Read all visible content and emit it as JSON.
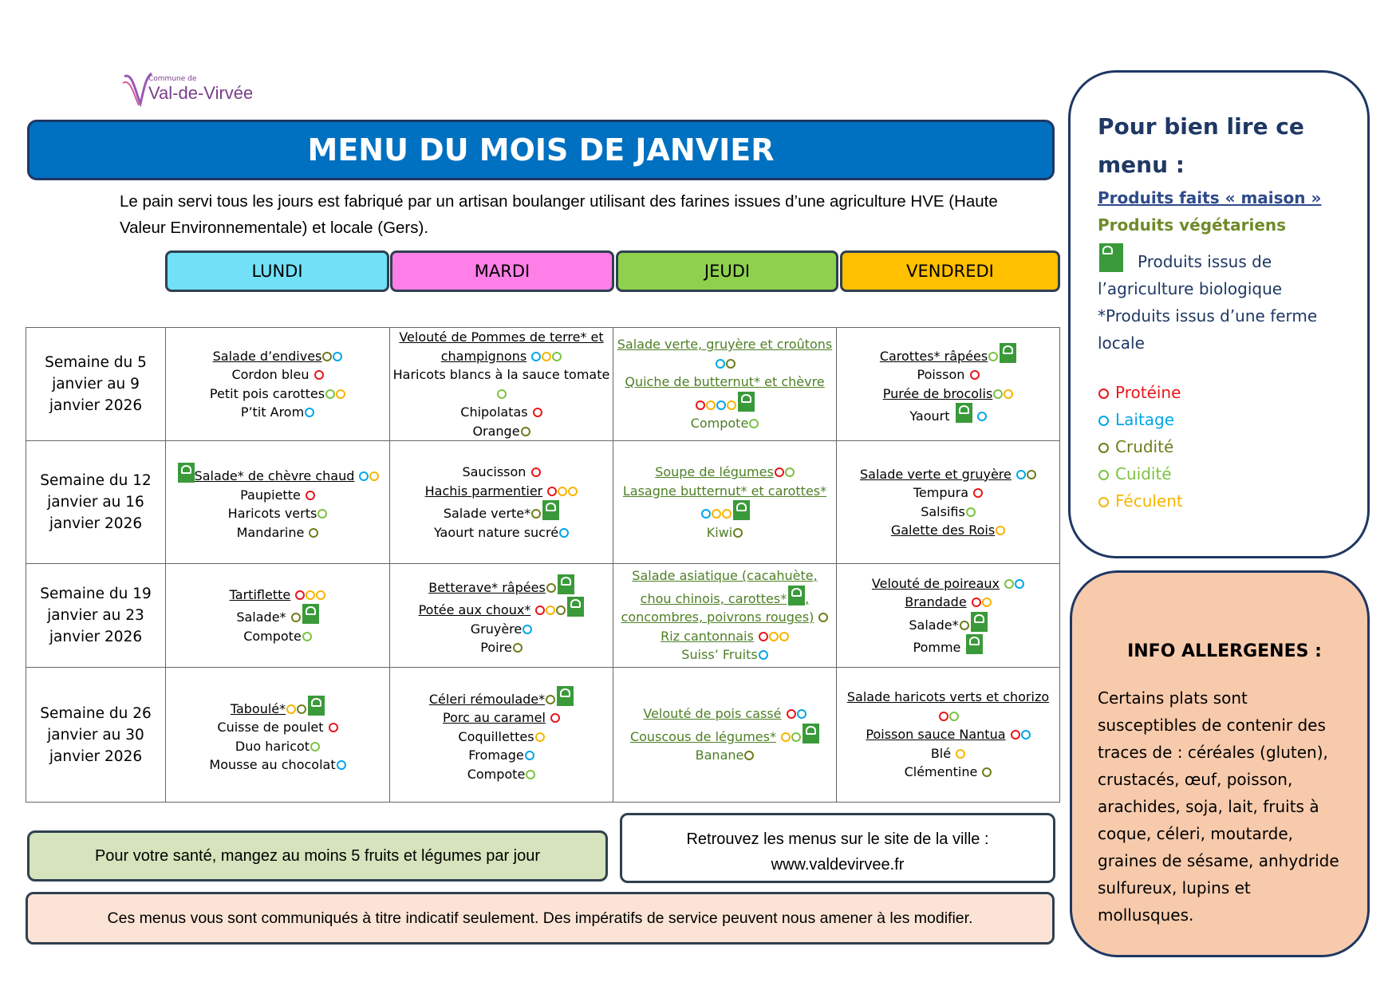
{
  "header": {
    "commune": "Commune de",
    "town": "Val-de-Virvée",
    "title": "MENU DU MOIS DE JANVIER",
    "intro": "Le pain servi tous les jours est fabriqué par un artisan boulanger utilisant des farines issues d’une agriculture HVE (Haute Valeur Environnementale) et locale (Gers)."
  },
  "days": [
    "LUNDI",
    "MARDI",
    "JEUDI",
    "VENDREDI"
  ],
  "weeks": [
    {
      "label": "Semaine du 5 janvier au 9 janvier 2026",
      "days": [
        [
          "Salade d’endives",
          "Cordon bleu",
          "Petit pois carottes",
          "P’tit Arom"
        ],
        [
          "Velouté de Pommes de terre* et champignons",
          "Haricots blancs à la sauce tomate",
          "Chipolatas",
          "Orange"
        ],
        [
          "Salade verte, gruyère et croûtons",
          "Quiche de butternut* et chèvre",
          "Compote"
        ],
        [
          "Carottes* râpées",
          "Poisson",
          "Purée de brocolis",
          "Yaourt"
        ]
      ]
    },
    {
      "label": "Semaine du 12 janvier au 16 janvier 2026",
      "days": [
        [
          "Salade* de chèvre chaud",
          "Paupiette",
          "Haricots verts",
          "Mandarine"
        ],
        [
          "Saucisson",
          "Hachis parmentier",
          "Salade verte*",
          "Yaourt nature sucré"
        ],
        [
          "Soupe de légumes",
          "Lasagne butternut* et carottes*",
          "Kiwi"
        ],
        [
          "Salade verte et gruyère",
          "Tempura",
          "Salsifis",
          "Galette des Rois"
        ]
      ]
    },
    {
      "label": "Semaine du 19 janvier au 23 janvier 2026",
      "days": [
        [
          "Tartiflette",
          "Salade*",
          "Compote"
        ],
        [
          "Betterave* râpées",
          "Potée aux choux*",
          "Gruyère",
          "Poire"
        ],
        [
          "Salade asiatique (cacahuète, chou chinois, carottes*",
          ", concombres, poivrons rouges)",
          "Riz cantonnais",
          "Suiss’ Fruits"
        ],
        [
          "Velouté de poireaux",
          "Brandade",
          "Salade*",
          "Pomme"
        ]
      ]
    },
    {
      "label": "Semaine du 26 janvier au 30 janvier 2026",
      "days": [
        [
          "Taboulé*",
          "Cuisse de poulet",
          "Duo haricot",
          "Mousse au chocolat"
        ],
        [
          "Céleri rémoulade*",
          "Porc au caramel",
          "Coquillettes",
          "Fromage",
          "Compote"
        ],
        [
          "Velouté de pois cassé",
          "Couscous de légumes*",
          "Banane"
        ],
        [
          "Salade haricots verts et chorizo",
          "Poisson sauce Nantua",
          "Blé",
          "Clémentine"
        ]
      ]
    }
  ],
  "footer": {
    "health": "Pour votre santé, mangez au moins 5 fruits et légumes par jour",
    "site_text": "Retrouvez les menus sur le site de la ville :",
    "site_url": "www.valdevirvee.fr",
    "disclaimer": "Ces menus vous sont communiqués à titre indicatif seulement. Des impératifs de service peuvent nous amener à les modifier."
  },
  "legend": {
    "title": "Pour bien lire ce menu :",
    "homemade": "Produits faits « maison »",
    "vegetarian": "Produits végétariens",
    "organic": "Produits issus de l’agriculture biologique",
    "local": "*Produits issus d’une ferme locale",
    "categories": [
      "Protéine",
      "Laitage",
      "Crudité",
      "Cuidité",
      "Féculent"
    ]
  },
  "allergens": {
    "title": "INFO ALLERGENES :",
    "text": "Certains plats sont susceptibles de contenir des traces de : céréales (gluten), crustacés, œuf, poisson, arachides, soja, lait, fruits à coque, céleri, moutarde, graines de sésame, anhydride sulfureux, lupins et mollusques."
  }
}
